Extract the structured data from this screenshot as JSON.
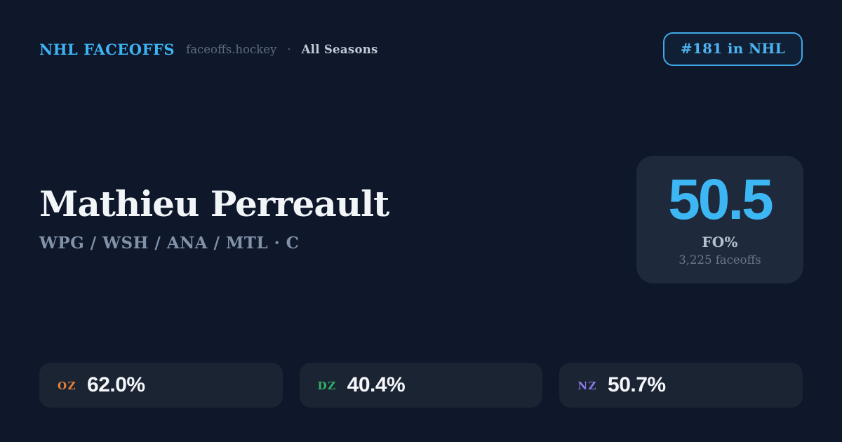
{
  "colors": {
    "background": "#0f172a",
    "accent_blue": "#3db6f4",
    "card_background": "#1e293b",
    "pill_background": "#1b2433",
    "oz_color": "#e8823a",
    "dz_color": "#2fb567",
    "nz_color": "#8b7ae6"
  },
  "header": {
    "brand": "NHL FACEOFFS",
    "domain": "faceoffs.hockey",
    "separator": "·",
    "season": "All Seasons",
    "rank_badge": "#181 in NHL"
  },
  "player": {
    "name": "Mathieu Perreault",
    "teams": "WPG / WSH / ANA / MTL · C"
  },
  "fo_card": {
    "value": "50.5",
    "label": "FO%",
    "sublabel": "3,225 faceoffs"
  },
  "zone_stats": [
    {
      "zone": "OZ",
      "value": "62.0%",
      "color": "#e8823a"
    },
    {
      "zone": "DZ",
      "value": "40.4%",
      "color": "#2fb567"
    },
    {
      "zone": "NZ",
      "value": "50.7%",
      "color": "#8b7ae6"
    }
  ]
}
